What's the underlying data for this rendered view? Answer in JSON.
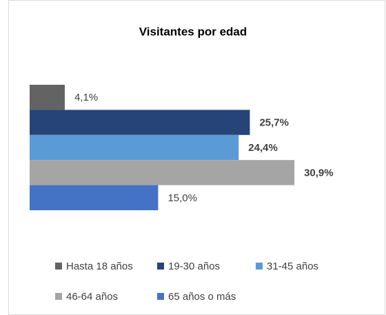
{
  "chart_data": {
    "type": "bar",
    "orientation": "horizontal",
    "title": "Visitantes por edad",
    "series": [
      {
        "name": "Hasta 18 años",
        "color": "#636363",
        "values": [
          4.1
        ],
        "value_labels": [
          "4,1%"
        ]
      },
      {
        "name": "19-30 años",
        "color": "#264478",
        "values": [
          25.7
        ],
        "value_labels": [
          "25,7%"
        ]
      },
      {
        "name": "31-45 años",
        "color": "#5b9bd5",
        "values": [
          24.4
        ],
        "value_labels": [
          "24,4%"
        ]
      },
      {
        "name": "46-64 años",
        "color": "#a5a5a5",
        "values": [
          30.9
        ],
        "value_labels": [
          "30,9%"
        ]
      },
      {
        "name": "65 años o más",
        "color": "#4472c4",
        "values": [
          15.0
        ],
        "value_labels": [
          "15,0%"
        ]
      }
    ],
    "legend": "bottom"
  }
}
